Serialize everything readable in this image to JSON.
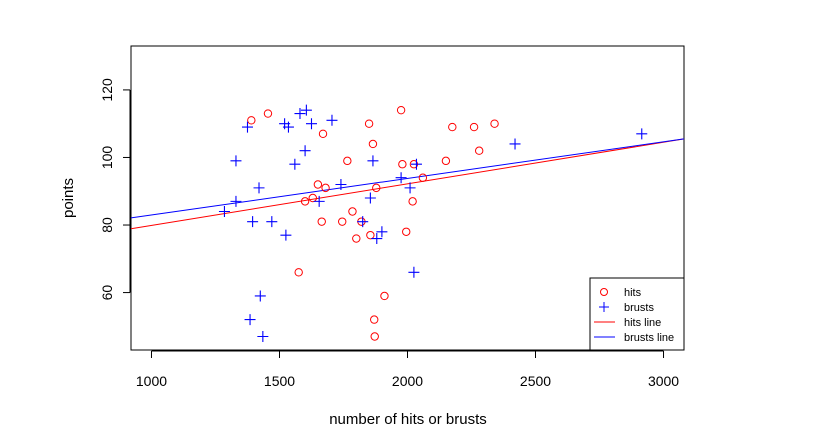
{
  "chart_data": {
    "type": "scatter",
    "title": "",
    "xlabel": "number of hits or brusts",
    "ylabel": "points",
    "xlim": [
      920,
      3080
    ],
    "ylim": [
      43,
      133
    ],
    "xticks": [
      1000,
      1500,
      2000,
      2500,
      3000
    ],
    "yticks": [
      60,
      80,
      100,
      120
    ],
    "legend_position": "bottom-right",
    "series": [
      {
        "name": "hits",
        "marker": "circle",
        "color": "#ff0000",
        "points": [
          [
            1390,
            111
          ],
          [
            1455,
            113
          ],
          [
            1575,
            66
          ],
          [
            1600,
            87
          ],
          [
            1630,
            88
          ],
          [
            1650,
            92
          ],
          [
            1665,
            81
          ],
          [
            1670,
            107
          ],
          [
            1680,
            91
          ],
          [
            1745,
            81
          ],
          [
            1765,
            99
          ],
          [
            1785,
            84
          ],
          [
            1800,
            76
          ],
          [
            1820,
            81
          ],
          [
            1850,
            110
          ],
          [
            1855,
            77
          ],
          [
            1865,
            104
          ],
          [
            1870,
            52
          ],
          [
            1872,
            47
          ],
          [
            1878,
            91
          ],
          [
            1910,
            59
          ],
          [
            1975,
            114
          ],
          [
            1980,
            98
          ],
          [
            1995,
            78
          ],
          [
            2020,
            87
          ],
          [
            2025,
            98
          ],
          [
            2060,
            94
          ],
          [
            2150,
            99
          ],
          [
            2175,
            109
          ],
          [
            2260,
            109
          ],
          [
            2280,
            102
          ],
          [
            2340,
            110
          ]
        ]
      },
      {
        "name": "brusts",
        "marker": "plus",
        "color": "#0000ff",
        "points": [
          [
            1285,
            84
          ],
          [
            1330,
            87
          ],
          [
            1330,
            99
          ],
          [
            1375,
            109
          ],
          [
            1385,
            52
          ],
          [
            1395,
            81
          ],
          [
            1420,
            91
          ],
          [
            1425,
            59
          ],
          [
            1435,
            47
          ],
          [
            1470,
            81
          ],
          [
            1520,
            110
          ],
          [
            1525,
            77
          ],
          [
            1535,
            109
          ],
          [
            1560,
            98
          ],
          [
            1580,
            113
          ],
          [
            1600,
            102
          ],
          [
            1605,
            114
          ],
          [
            1625,
            110
          ],
          [
            1655,
            87
          ],
          [
            1705,
            111
          ],
          [
            1740,
            92
          ],
          [
            1825,
            81
          ],
          [
            1855,
            88
          ],
          [
            1865,
            99
          ],
          [
            1880,
            76
          ],
          [
            1900,
            78
          ],
          [
            1975,
            94
          ],
          [
            2010,
            91
          ],
          [
            2025,
            66
          ],
          [
            2035,
            98
          ],
          [
            2420,
            104
          ],
          [
            2915,
            107
          ]
        ]
      },
      {
        "name": "hits line",
        "type": "line",
        "color": "#ff0000",
        "x": [
          920,
          3080
        ],
        "y": [
          78.9,
          105.5
        ]
      },
      {
        "name": "brusts line",
        "type": "line",
        "color": "#0000ff",
        "x": [
          920,
          3080
        ],
        "y": [
          82.1,
          105.5
        ]
      }
    ]
  }
}
